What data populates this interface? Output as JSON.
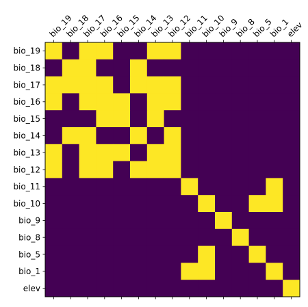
{
  "chart_data": {
    "type": "heatmap",
    "x_labels": [
      "bio_19",
      "bio_18",
      "bio_17",
      "bio_16",
      "bio_15",
      "bio_14",
      "bio_13",
      "bio_12",
      "bio_11",
      "bio_10",
      "bio_9",
      "bio_8",
      "bio_5",
      "bio_1",
      "elev"
    ],
    "y_labels": [
      "bio_19",
      "bio_18",
      "bio_17",
      "bio_16",
      "bio_15",
      "bio_14",
      "bio_13",
      "bio_12",
      "bio_11",
      "bio_10",
      "bio_9",
      "bio_8",
      "bio_5",
      "bio_1",
      "elev"
    ],
    "values": [
      [
        1,
        0,
        1,
        1,
        0,
        0,
        1,
        1,
        0,
        0,
        0,
        0,
        0,
        0,
        0
      ],
      [
        0,
        1,
        1,
        0,
        0,
        1,
        0,
        0,
        0,
        0,
        0,
        0,
        0,
        0,
        0
      ],
      [
        1,
        1,
        1,
        1,
        0,
        1,
        1,
        1,
        0,
        0,
        0,
        0,
        0,
        0,
        0
      ],
      [
        1,
        0,
        1,
        1,
        1,
        0,
        1,
        1,
        0,
        0,
        0,
        0,
        0,
        0,
        0
      ],
      [
        0,
        0,
        0,
        1,
        1,
        0,
        1,
        0,
        0,
        0,
        0,
        0,
        0,
        0,
        0
      ],
      [
        0,
        1,
        1,
        0,
        0,
        1,
        0,
        1,
        0,
        0,
        0,
        0,
        0,
        0,
        0
      ],
      [
        1,
        0,
        1,
        1,
        1,
        0,
        1,
        1,
        0,
        0,
        0,
        0,
        0,
        0,
        0
      ],
      [
        1,
        0,
        1,
        1,
        0,
        1,
        1,
        1,
        0,
        0,
        0,
        0,
        0,
        0,
        0
      ],
      [
        0,
        0,
        0,
        0,
        0,
        0,
        0,
        0,
        1,
        0,
        0,
        0,
        0,
        1,
        0
      ],
      [
        0,
        0,
        0,
        0,
        0,
        0,
        0,
        0,
        0,
        1,
        0,
        0,
        1,
        1,
        0
      ],
      [
        0,
        0,
        0,
        0,
        0,
        0,
        0,
        0,
        0,
        0,
        1,
        0,
        0,
        0,
        0
      ],
      [
        0,
        0,
        0,
        0,
        0,
        0,
        0,
        0,
        0,
        0,
        0,
        1,
        0,
        0,
        0
      ],
      [
        0,
        0,
        0,
        0,
        0,
        0,
        0,
        0,
        0,
        1,
        0,
        0,
        1,
        0,
        0
      ],
      [
        0,
        0,
        0,
        0,
        0,
        0,
        0,
        0,
        1,
        1,
        0,
        0,
        0,
        1,
        0
      ],
      [
        0,
        0,
        0,
        0,
        0,
        0,
        0,
        0,
        0,
        0,
        0,
        0,
        0,
        0,
        1
      ]
    ],
    "colors": {
      "0": "#440154",
      "1": "#fde725"
    },
    "xaxis_position": "top",
    "grid": false
  }
}
